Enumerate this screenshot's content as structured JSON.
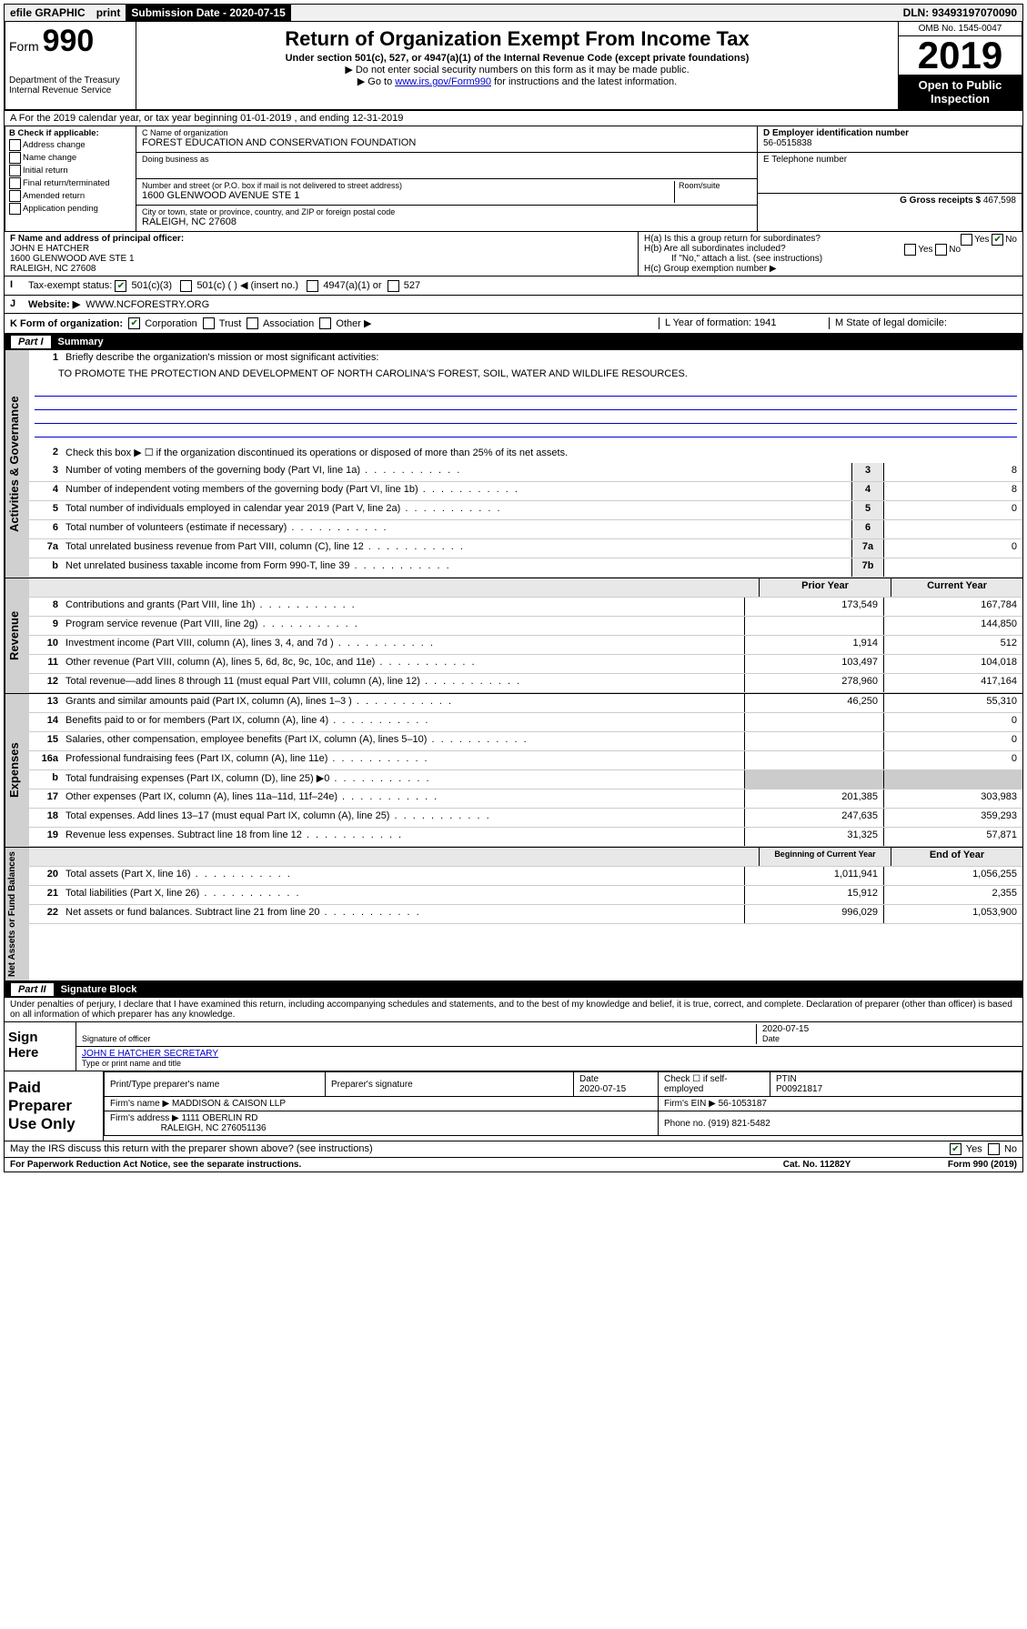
{
  "topbar": {
    "efile": "efile GRAPHIC",
    "print": "print",
    "subdate_label": "Submission Date - 2020-07-15",
    "dln": "DLN: 93493197070090"
  },
  "header": {
    "form_prefix": "Form",
    "form_num": "990",
    "dept": "Department of the Treasury",
    "irs": "Internal Revenue Service",
    "title": "Return of Organization Exempt From Income Tax",
    "subtitle": "Under section 501(c), 527, or 4947(a)(1) of the Internal Revenue Code (except private foundations)",
    "note1": "▶ Do not enter social security numbers on this form as it may be made public.",
    "note2_pre": "▶ Go to ",
    "note2_link": "www.irs.gov/Form990",
    "note2_post": " for instructions and the latest information.",
    "omb": "OMB No. 1545-0047",
    "year": "2019",
    "open": "Open to Public Inspection"
  },
  "rowA": "A For the 2019 calendar year, or tax year beginning 01-01-2019   , and ending 12-31-2019",
  "checkB": {
    "title": "B Check if applicable:",
    "items": [
      "Address change",
      "Name change",
      "Initial return",
      "Final return/terminated",
      "Amended return",
      "Application pending"
    ]
  },
  "boxC": {
    "name_lbl": "C Name of organization",
    "name": "FOREST EDUCATION AND CONSERVATION FOUNDATION",
    "dba_lbl": "Doing business as",
    "dba": "",
    "addr_lbl": "Number and street (or P.O. box if mail is not delivered to street address)",
    "room_lbl": "Room/suite",
    "addr": "1600 GLENWOOD AVENUE STE 1",
    "city_lbl": "City or town, state or province, country, and ZIP or foreign postal code",
    "city": "RALEIGH, NC  27608"
  },
  "boxD": {
    "ein_lbl": "D Employer identification number",
    "ein": "56-0515838",
    "tel_lbl": "E Telephone number",
    "tel": "",
    "gross_lbl": "G Gross receipts $",
    "gross": "467,598"
  },
  "boxF": {
    "lbl": "F  Name and address of principal officer:",
    "name": "JOHN E HATCHER",
    "addr1": "1600 GLENWOOD AVE STE 1",
    "addr2": "RALEIGH, NC  27608"
  },
  "boxH": {
    "a": "H(a)  Is this a group return for subordinates?",
    "b": "H(b)  Are all subordinates included?",
    "b_note": "If \"No,\" attach a list. (see instructions)",
    "c": "H(c)  Group exemption number ▶",
    "yes": "Yes",
    "no": "No"
  },
  "rowI": {
    "label": "Tax-exempt status:",
    "opt1": "501(c)(3)",
    "opt2": "501(c) (  ) ◀ (insert no.)",
    "opt3": "4947(a)(1) or",
    "opt4": "527"
  },
  "rowJ": {
    "label": "Website: ▶",
    "val": "WWW.NCFORESTRY.ORG"
  },
  "rowK": {
    "label": "K Form of organization:",
    "opts": [
      "Corporation",
      "Trust",
      "Association",
      "Other ▶"
    ],
    "L": "L Year of formation: 1941",
    "M": "M State of legal domicile:"
  },
  "part1": {
    "label": "Part I",
    "title": "Summary",
    "q1": "Briefly describe the organization's mission or most significant activities:",
    "mission": "TO PROMOTE THE PROTECTION AND DEVELOPMENT OF NORTH CAROLINA'S FOREST, SOIL, WATER AND WILDLIFE RESOURCES.",
    "q2": "Check this box ▶ ☐  if the organization discontinued its operations or disposed of more than 25% of its net assets.",
    "lines_gov": [
      {
        "n": "3",
        "d": "Number of voting members of the governing body (Part VI, line 1a)",
        "b": "3",
        "v": "8"
      },
      {
        "n": "4",
        "d": "Number of independent voting members of the governing body (Part VI, line 1b)",
        "b": "4",
        "v": "8"
      },
      {
        "n": "5",
        "d": "Total number of individuals employed in calendar year 2019 (Part V, line 2a)",
        "b": "5",
        "v": "0"
      },
      {
        "n": "6",
        "d": "Total number of volunteers (estimate if necessary)",
        "b": "6",
        "v": ""
      },
      {
        "n": "7a",
        "d": "Total unrelated business revenue from Part VIII, column (C), line 12",
        "b": "7a",
        "v": "0"
      },
      {
        "n": "b",
        "d": "Net unrelated business taxable income from Form 990-T, line 39",
        "b": "7b",
        "v": ""
      }
    ],
    "col_prior": "Prior Year",
    "col_curr": "Current Year",
    "lines_rev": [
      {
        "n": "8",
        "d": "Contributions and grants (Part VIII, line 1h)",
        "p": "173,549",
        "c": "167,784"
      },
      {
        "n": "9",
        "d": "Program service revenue (Part VIII, line 2g)",
        "p": "",
        "c": "144,850"
      },
      {
        "n": "10",
        "d": "Investment income (Part VIII, column (A), lines 3, 4, and 7d )",
        "p": "1,914",
        "c": "512"
      },
      {
        "n": "11",
        "d": "Other revenue (Part VIII, column (A), lines 5, 6d, 8c, 9c, 10c, and 11e)",
        "p": "103,497",
        "c": "104,018"
      },
      {
        "n": "12",
        "d": "Total revenue—add lines 8 through 11 (must equal Part VIII, column (A), line 12)",
        "p": "278,960",
        "c": "417,164"
      }
    ],
    "lines_exp": [
      {
        "n": "13",
        "d": "Grants and similar amounts paid (Part IX, column (A), lines 1–3 )",
        "p": "46,250",
        "c": "55,310"
      },
      {
        "n": "14",
        "d": "Benefits paid to or for members (Part IX, column (A), line 4)",
        "p": "",
        "c": "0"
      },
      {
        "n": "15",
        "d": "Salaries, other compensation, employee benefits (Part IX, column (A), lines 5–10)",
        "p": "",
        "c": "0"
      },
      {
        "n": "16a",
        "d": "Professional fundraising fees (Part IX, column (A), line 11e)",
        "p": "",
        "c": "0"
      },
      {
        "n": "b",
        "d": "Total fundraising expenses (Part IX, column (D), line 25) ▶0",
        "p": "grey",
        "c": "grey"
      },
      {
        "n": "17",
        "d": "Other expenses (Part IX, column (A), lines 11a–11d, 11f–24e)",
        "p": "201,385",
        "c": "303,983"
      },
      {
        "n": "18",
        "d": "Total expenses. Add lines 13–17 (must equal Part IX, column (A), line 25)",
        "p": "247,635",
        "c": "359,293"
      },
      {
        "n": "19",
        "d": "Revenue less expenses. Subtract line 18 from line 12",
        "p": "31,325",
        "c": "57,871"
      }
    ],
    "col_beg": "Beginning of Current Year",
    "col_end": "End of Year",
    "lines_net": [
      {
        "n": "20",
        "d": "Total assets (Part X, line 16)",
        "p": "1,011,941",
        "c": "1,056,255"
      },
      {
        "n": "21",
        "d": "Total liabilities (Part X, line 26)",
        "p": "15,912",
        "c": "2,355"
      },
      {
        "n": "22",
        "d": "Net assets or fund balances. Subtract line 21 from line 20",
        "p": "996,029",
        "c": "1,053,900"
      }
    ]
  },
  "part2": {
    "label": "Part II",
    "title": "Signature Block",
    "perjury": "Under penalties of perjury, I declare that I have examined this return, including accompanying schedules and statements, and to the best of my knowledge and belief, it is true, correct, and complete. Declaration of preparer (other than officer) is based on all information of which preparer has any knowledge.",
    "sign": "Sign Here",
    "sig_officer": "Signature of officer",
    "date": "Date",
    "date_val": "2020-07-15",
    "name_title": "JOHN E HATCHER  SECRETARY",
    "type_name": "Type or print name and title",
    "paid": "Paid Preparer Use Only",
    "prep_name_lbl": "Print/Type preparer's name",
    "prep_sig_lbl": "Preparer's signature",
    "prep_date_lbl": "Date",
    "prep_date": "2020-07-15",
    "check_self": "Check ☐ if self-employed",
    "ptin_lbl": "PTIN",
    "ptin": "P00921817",
    "firm_name_lbl": "Firm's name   ▶",
    "firm_name": "MADDISON & CAISON LLP",
    "firm_ein_lbl": "Firm's EIN ▶",
    "firm_ein": "56-1053187",
    "firm_addr_lbl": "Firm's address ▶",
    "firm_addr": "1111 OBERLIN RD",
    "firm_city": "RALEIGH, NC  276051136",
    "phone_lbl": "Phone no.",
    "phone": "(919) 821-5482",
    "discuss": "May the IRS discuss this return with the preparer shown above? (see instructions)",
    "paperwork": "For Paperwork Reduction Act Notice, see the separate instructions.",
    "cat": "Cat. No. 11282Y",
    "formfoot": "Form 990 (2019)"
  },
  "vtabs": {
    "gov": "Activities & Governance",
    "rev": "Revenue",
    "exp": "Expenses",
    "net": "Net Assets or Fund Balances"
  }
}
